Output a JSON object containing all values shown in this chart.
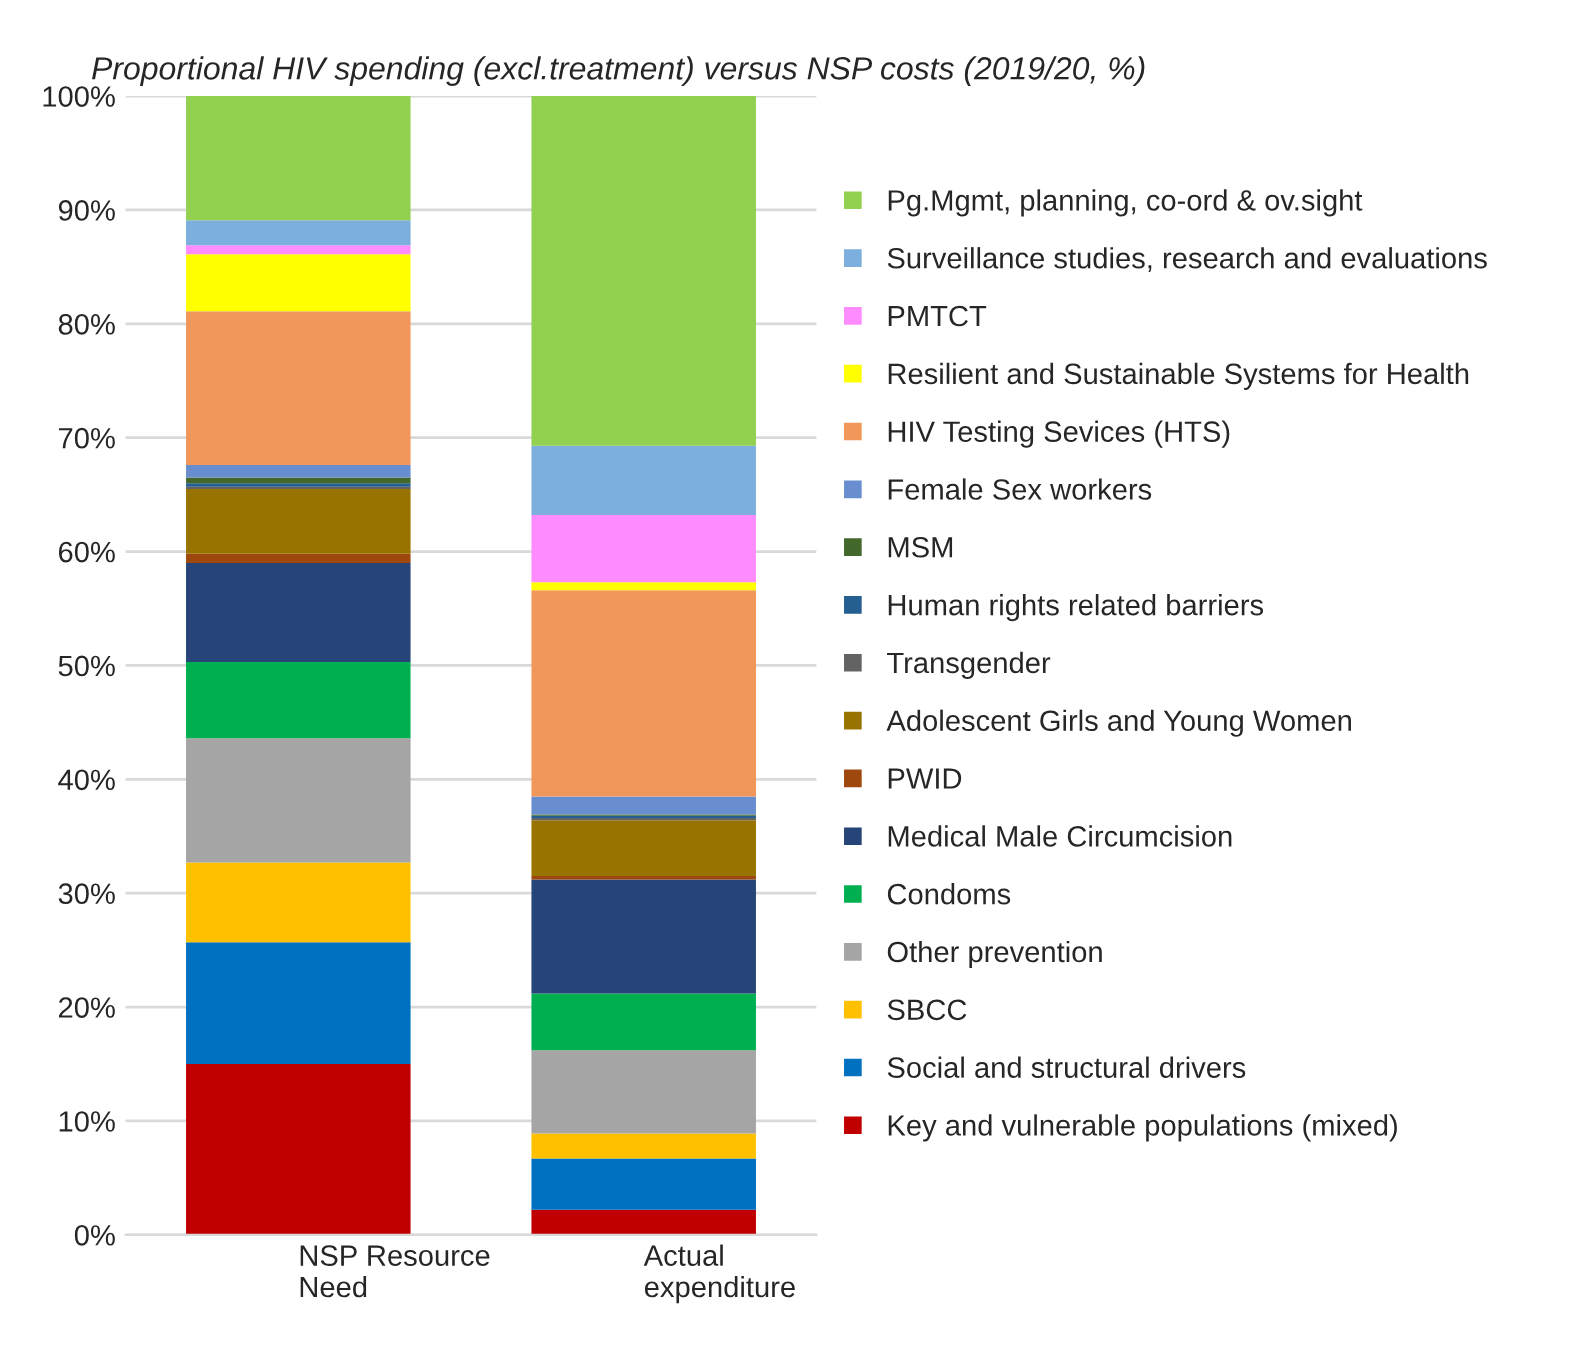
{
  "chart_data": {
    "type": "bar",
    "title": "Proportional HIV spending (excl.treatment) versus NSP costs (2019/20, %)",
    "categories": [
      "NSP Resource\nNeed",
      "Actual\nexpenditure"
    ],
    "stacked": true,
    "ylim": [
      0,
      100
    ],
    "yticks": [
      {
        "value": 0,
        "label": "0%"
      },
      {
        "value": 10,
        "label": "10%"
      },
      {
        "value": 20,
        "label": "20%"
      },
      {
        "value": 30,
        "label": "30%"
      },
      {
        "value": 40,
        "label": "40%"
      },
      {
        "value": 50,
        "label": "50%"
      },
      {
        "value": 60,
        "label": "60%"
      },
      {
        "value": 70,
        "label": "70%"
      },
      {
        "value": 80,
        "label": "80%"
      },
      {
        "value": 90,
        "label": "90%"
      },
      {
        "value": 100,
        "label": "100%"
      }
    ],
    "grid": "y",
    "legend": "right",
    "series": [
      {
        "name": "Key and vulnerable populations (mixed)",
        "color": "#c00000",
        "values": [
          15.0,
          2.2
        ]
      },
      {
        "name": "Social and structural drivers",
        "color": "#0070c0",
        "values": [
          10.7,
          4.5
        ]
      },
      {
        "name": "SBCC",
        "color": "#ffc000",
        "values": [
          7.0,
          2.2
        ]
      },
      {
        "name": "Other prevention",
        "color": "#a5a5a5",
        "values": [
          10.9,
          7.3
        ]
      },
      {
        "name": "Condoms",
        "color": "#00b050",
        "values": [
          6.7,
          5.0
        ]
      },
      {
        "name": "Medical Male Circumcision",
        "color": "#264478",
        "values": [
          8.7,
          10.0
        ]
      },
      {
        "name": "PWID",
        "color": "#9e480e",
        "values": [
          0.8,
          0.3
        ]
      },
      {
        "name": "Adolescent Girls and Young Women",
        "color": "#997300",
        "values": [
          5.7,
          4.9
        ]
      },
      {
        "name": "Transgender",
        "color": "#636363",
        "values": [
          0.2,
          0.2
        ]
      },
      {
        "name": "Human rights related barriers",
        "color": "#255e91",
        "values": [
          0.3,
          0.2
        ]
      },
      {
        "name": "MSM",
        "color": "#43682b",
        "values": [
          0.5,
          0.1
        ]
      },
      {
        "name": "Female Sex workers",
        "color": "#698ed0",
        "values": [
          1.1,
          1.6
        ]
      },
      {
        "name": "HIV Testing Sevices (HTS)",
        "color": "#f1975a",
        "values": [
          13.5,
          18.1
        ]
      },
      {
        "name": "Resilient and Sustainable Systems for Health",
        "color": "#ffff00",
        "values": [
          5.0,
          0.7
        ]
      },
      {
        "name": "PMTCT",
        "color": "#ff8cff",
        "values": [
          0.8,
          5.9
        ]
      },
      {
        "name": "Surveillance studies, research and evaluations",
        "color": "#7cafdd",
        "values": [
          2.2,
          6.1
        ]
      },
      {
        "name": "Pg.Mgmt, planning, co-ord & ov.sight",
        "color": "#92d050",
        "values": [
          10.9,
          30.7
        ]
      }
    ]
  }
}
